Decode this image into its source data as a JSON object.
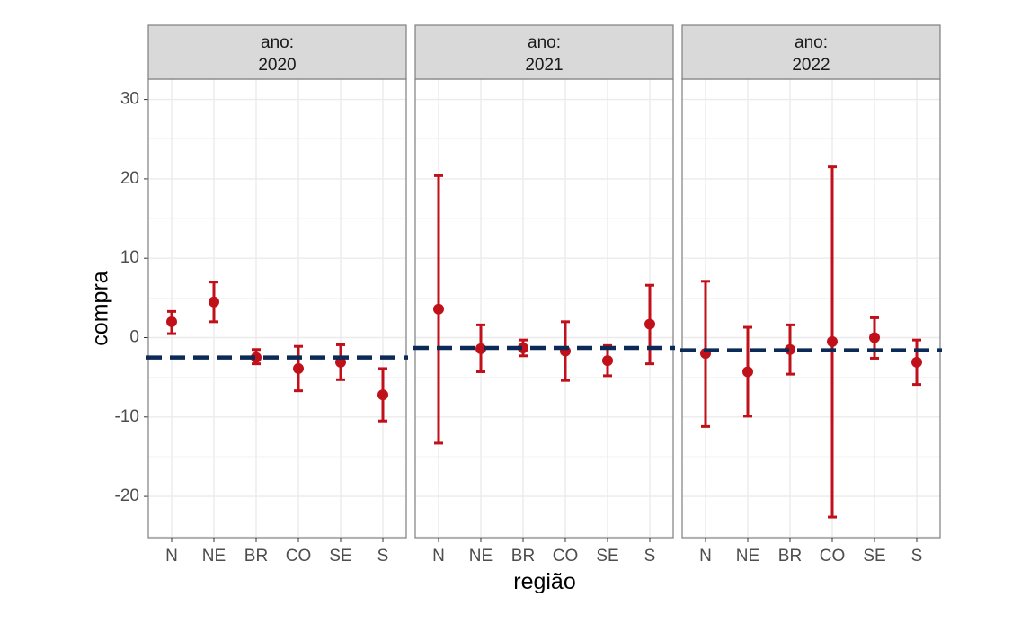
{
  "chart_data": {
    "type": "scatter",
    "subtype": "point-errorbar-facets",
    "xlabel": "região",
    "ylabel": "compra",
    "ylim": [
      -25,
      32
    ],
    "yticks": [
      -20,
      -10,
      0,
      10,
      20,
      30
    ],
    "ytick_labels": [
      "-20",
      "-10",
      "0",
      "10",
      "20",
      "30"
    ],
    "categories": [
      "N",
      "NE",
      "BR",
      "CO",
      "SE",
      "S"
    ],
    "grid": true,
    "legend": "none",
    "point_color": "#c0111b",
    "reference_line_color": "#0c2a57",
    "facets": [
      {
        "label_line1": "ano:",
        "label_line2": "2020",
        "reference_line": -2.5,
        "points": [
          {
            "x": "N",
            "y": 2.0,
            "lower": 0.5,
            "upper": 3.3
          },
          {
            "x": "NE",
            "y": 4.5,
            "lower": 2.0,
            "upper": 7.0
          },
          {
            "x": "BR",
            "y": -2.5,
            "lower": -3.3,
            "upper": -1.5
          },
          {
            "x": "CO",
            "y": -3.9,
            "lower": -6.7,
            "upper": -1.1
          },
          {
            "x": "SE",
            "y": -3.1,
            "lower": -5.3,
            "upper": -0.9
          },
          {
            "x": "S",
            "y": -7.2,
            "lower": -10.5,
            "upper": -3.9
          }
        ]
      },
      {
        "label_line1": "ano:",
        "label_line2": "2021",
        "reference_line": -1.3,
        "points": [
          {
            "x": "N",
            "y": 3.6,
            "lower": -13.3,
            "upper": 20.4
          },
          {
            "x": "NE",
            "y": -1.4,
            "lower": -4.3,
            "upper": 1.6
          },
          {
            "x": "BR",
            "y": -1.3,
            "lower": -2.3,
            "upper": -0.3
          },
          {
            "x": "CO",
            "y": -1.7,
            "lower": -5.4,
            "upper": 2.0
          },
          {
            "x": "SE",
            "y": -2.9,
            "lower": -4.8,
            "upper": -1.0
          },
          {
            "x": "S",
            "y": 1.7,
            "lower": -3.3,
            "upper": 6.6
          }
        ]
      },
      {
        "label_line1": "ano:",
        "label_line2": "2022",
        "reference_line": -1.6,
        "points": [
          {
            "x": "N",
            "y": -2.0,
            "lower": -11.2,
            "upper": 7.1
          },
          {
            "x": "NE",
            "y": -4.3,
            "lower": -9.9,
            "upper": 1.3
          },
          {
            "x": "BR",
            "y": -1.5,
            "lower": -4.6,
            "upper": 1.6
          },
          {
            "x": "CO",
            "y": -0.5,
            "lower": -22.6,
            "upper": 21.5
          },
          {
            "x": "SE",
            "y": 0.0,
            "lower": -2.6,
            "upper": 2.5
          },
          {
            "x": "S",
            "y": -3.1,
            "lower": -5.9,
            "upper": -0.3
          }
        ]
      }
    ]
  }
}
